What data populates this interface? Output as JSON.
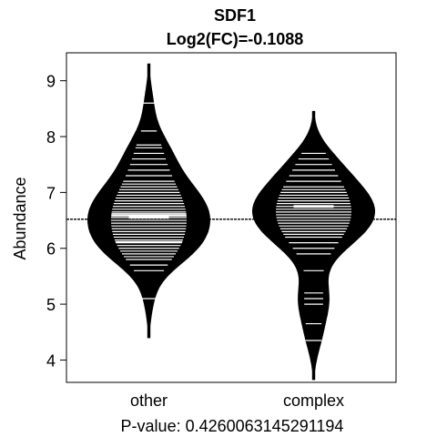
{
  "chart_data": {
    "type": "beanplot",
    "title": "SDF1",
    "subtitle": "Log2(FC)=-0.1088",
    "ylabel": "Abundance",
    "xlabel": "P-value: 0.4260063145291194",
    "categories": [
      "other",
      "complex"
    ],
    "ylim": [
      3.6,
      9.5
    ],
    "yticks": [
      4,
      5,
      6,
      7,
      8,
      9
    ],
    "overall_mean": 6.52,
    "series": [
      {
        "name": "other",
        "density_min": 4.4,
        "density_max": 9.3,
        "mode": 6.55,
        "observations": [
          5.1,
          5.6,
          5.7,
          5.8,
          5.85,
          5.9,
          5.95,
          6.0,
          6.05,
          6.1,
          6.12,
          6.15,
          6.2,
          6.25,
          6.3,
          6.35,
          6.4,
          6.45,
          6.5,
          6.55,
          6.58,
          6.6,
          6.62,
          6.65,
          6.7,
          6.75,
          6.8,
          6.85,
          6.9,
          6.95,
          7.0,
          7.05,
          7.1,
          7.15,
          7.2,
          7.3,
          7.4,
          7.5,
          7.6,
          7.7,
          7.8,
          7.85,
          8.1,
          8.6
        ]
      },
      {
        "name": "complex",
        "density_min": 3.65,
        "density_max": 8.45,
        "mode": 6.75,
        "observations": [
          4.35,
          4.65,
          5.0,
          5.1,
          5.2,
          5.6,
          5.9,
          6.0,
          6.1,
          6.2,
          6.25,
          6.3,
          6.35,
          6.4,
          6.45,
          6.5,
          6.55,
          6.6,
          6.65,
          6.7,
          6.75,
          6.8,
          6.85,
          6.9,
          6.95,
          7.0,
          7.05,
          7.1,
          7.2,
          7.3,
          7.4,
          7.5,
          7.6,
          7.7
        ]
      }
    ]
  }
}
